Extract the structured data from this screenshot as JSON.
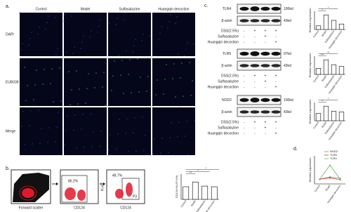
{
  "panel_a": {
    "label": "a.",
    "columns": [
      "Control",
      "Model",
      "Sulfasalazine",
      "Huangqin decoction"
    ],
    "rows": [
      "DAPI",
      "EUB338",
      "Merge"
    ]
  },
  "panel_b": {
    "label": "b.",
    "flow": {
      "x_label_1": "Forward scatter",
      "x_label_2": "CD124",
      "gate_2": "86.2%",
      "y_label_3": "Ki-67",
      "x_label_3": "CD124",
      "gate_3": "48.7%",
      "gate_name": "P3"
    },
    "chart": {
      "y_label": "CD124+Ki-67+(%)",
      "categories": [
        "Control",
        "Model",
        "Sulfasalazine",
        "Huangqin decoction"
      ],
      "values": [
        40,
        55,
        42,
        40
      ],
      "ylim": [
        0,
        80
      ],
      "significance": [
        "**",
        "*",
        "*"
      ]
    }
  },
  "panel_c": {
    "label": "c.",
    "blots": [
      {
        "protein": "TLR4",
        "size": "100kd",
        "control": "β-actin",
        "control_size": "43kd",
        "treatments": [
          {
            "name": "DSS(2.5%)",
            "signs": [
              "-",
              "+",
              "+",
              "+"
            ]
          },
          {
            "name": "Sulfasalazine",
            "signs": [
              "-",
              "-",
              "+",
              "-"
            ]
          },
          {
            "name": "Huangqin decoction",
            "signs": [
              "-",
              "-",
              "-",
              "+"
            ]
          }
        ],
        "chart": {
          "y_label": "Relative expression",
          "categories": [
            "Control",
            "Model",
            "Sulfasalazine",
            "Huangqin decoction"
          ],
          "values": [
            1.0,
            4.0,
            2.5,
            1.5
          ],
          "ylim": [
            0,
            5
          ],
          "significance": [
            "*",
            "*"
          ]
        }
      },
      {
        "protein": "TLR5",
        "size": "97kd",
        "control": "β-actin",
        "control_size": "43kd",
        "treatments": [
          {
            "name": "DSS(2.5%)",
            "signs": [
              "-",
              "+",
              "+",
              "+"
            ]
          },
          {
            "name": "Sulfasalazine",
            "signs": [
              "-",
              "-",
              "+",
              "-"
            ]
          },
          {
            "name": "Huangqin decoction",
            "signs": [
              "-",
              "-",
              "-",
              "+"
            ]
          }
        ],
        "chart": {
          "y_label": "Relative expression",
          "categories": [
            "Control",
            "Model",
            "Sulfasalazine",
            "Huangqin decoction"
          ],
          "values": [
            1.0,
            2.4,
            1.6,
            1.3
          ],
          "ylim": [
            0,
            3
          ],
          "significance": [
            "***",
            "**"
          ]
        }
      },
      {
        "protein": "NOD2",
        "size": "100kd",
        "control": "β-actin",
        "control_size": "43kd",
        "treatments": [
          {
            "name": "DSS(2.5%)",
            "signs": [
              "-",
              "+",
              "+",
              "+"
            ]
          },
          {
            "name": "Sulfasalazine",
            "signs": [
              "-",
              "-",
              "+",
              "-"
            ]
          },
          {
            "name": "Huangqin decoction",
            "signs": [
              "-",
              "-",
              "-",
              "+"
            ]
          }
        ],
        "chart": {
          "y_label": "Relative expression",
          "categories": [
            "Control",
            "Model",
            "Sulfasalazine",
            "Huangqin decoction"
          ],
          "values": [
            1.0,
            2.0,
            1.3,
            1.2
          ],
          "ylim": [
            0,
            2.5
          ],
          "significance": [
            "*",
            "*"
          ]
        }
      }
    ]
  },
  "panel_d": {
    "label": "d.",
    "chart": {
      "type": "line",
      "y_label": "Relative expression",
      "categories": [
        "Control",
        "Model",
        "Huangqin decoction"
      ],
      "ylim": [
        0,
        6
      ],
      "series": [
        {
          "name": "NOD2",
          "color": "#7f8fa6",
          "values": [
            1.0,
            1.5,
            1.2
          ]
        },
        {
          "name": "TLR5",
          "color": "#d9342b",
          "values": [
            1.0,
            1.3,
            0.9
          ]
        },
        {
          "name": "TLR4",
          "color": "#5cb85c",
          "values": [
            1.0,
            4.0,
            1.0
          ]
        }
      ]
    }
  }
}
